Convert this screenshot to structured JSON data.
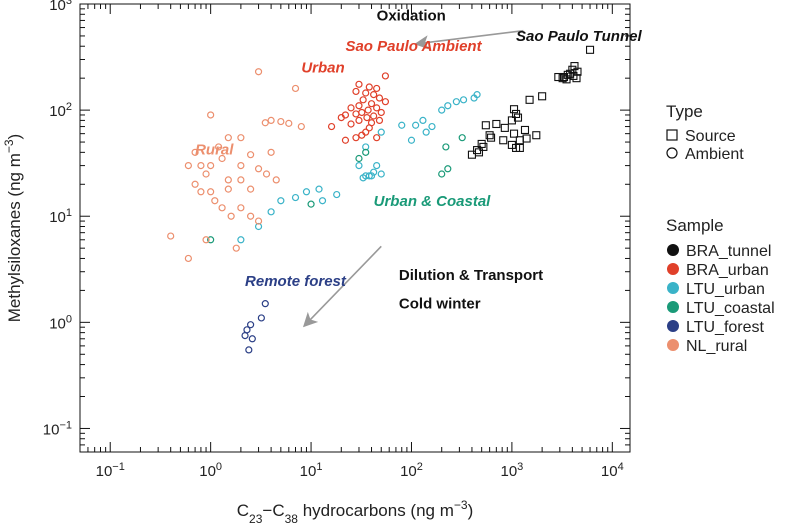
{
  "chart_data": {
    "type": "scatter",
    "x_scale": "log",
    "y_scale": "log",
    "xlim": [
      0.05,
      15000
    ],
    "ylim": [
      0.06,
      1000
    ],
    "xticks": [
      {
        "v": 0.1,
        "base": "10",
        "exp": "−1"
      },
      {
        "v": 1,
        "text": "10",
        "exp": "0"
      },
      {
        "v": 10,
        "text": "10",
        "exp": "1"
      },
      {
        "v": 100,
        "text": "10",
        "exp": "2"
      },
      {
        "v": 1000,
        "text": "10",
        "exp": "3"
      },
      {
        "v": 10000,
        "text": "10",
        "exp": "4"
      }
    ],
    "yticks": [
      {
        "v": 0.1,
        "text": "10",
        "exp": "−1"
      },
      {
        "v": 1,
        "text": "10",
        "exp": "0"
      },
      {
        "v": 10,
        "text": "10",
        "exp": "1"
      },
      {
        "v": 100,
        "text": "10",
        "exp": "2"
      },
      {
        "v": 1000,
        "text": "10",
        "exp": "3"
      }
    ],
    "xlabel": {
      "pre": "C",
      "sub1": "23",
      "mid": "−C",
      "sub2": "38",
      "post": " hydrocarbons (ng m",
      "exp": "−3",
      "close": ")"
    },
    "ylabel": {
      "pre": "Methylsiloxanes (ng m",
      "exp": "−3",
      "close": ")"
    },
    "legend_type": {
      "title": "Type",
      "items": [
        {
          "label": "Source",
          "marker": "square"
        },
        {
          "label": "Ambient",
          "marker": "circle"
        }
      ]
    },
    "legend_sample": {
      "title": "Sample",
      "items": [
        {
          "label": "BRA_tunnel",
          "color": "#111111"
        },
        {
          "label": "BRA_urban",
          "color": "#e0402a"
        },
        {
          "label": "LTU_urban",
          "color": "#3ab3c8"
        },
        {
          "label": "LTU_coastal",
          "color": "#1a9a78"
        },
        {
          "label": "LTU_forest",
          "color": "#2b3f86"
        },
        {
          "label": "NL_rural",
          "color": "#ec8f6e"
        }
      ]
    },
    "annotations": [
      {
        "text": "Oxidation",
        "x": 45,
        "y": 700,
        "color": "#111111",
        "style": "plain"
      },
      {
        "text": "Sao Paulo Tunnel",
        "x": 1100,
        "y": 450,
        "color": "#111111",
        "style": "italic"
      },
      {
        "text": "Sao Paulo Ambient",
        "x": 22,
        "y": 360,
        "color": "#e0402a",
        "style": "italic"
      },
      {
        "text": "Urban",
        "x": 8,
        "y": 225,
        "color": "#e0402a",
        "style": "italic"
      },
      {
        "text": "Rural",
        "x": 0.7,
        "y": 38,
        "color": "#ec8f6e",
        "style": "italic"
      },
      {
        "text": "Urban & Coastal",
        "x": 42,
        "y": 12.5,
        "color": "#1a9a78",
        "style": "italic"
      },
      {
        "text": "Remote forest",
        "x": 2.2,
        "y": 2.2,
        "color": "#2b3f86",
        "style": "italic"
      },
      {
        "text": "Dilution & Transport",
        "x": 75,
        "y": 2.5,
        "color": "#111111",
        "style": "plain"
      },
      {
        "text": "Cold winter",
        "x": 75,
        "y": 1.35,
        "color": "#111111",
        "style": "plain"
      }
    ],
    "arrows": [
      {
        "from": [
          1300,
          560
        ],
        "to": [
          110,
          420
        ]
      },
      {
        "from": [
          50,
          5.2
        ],
        "to": [
          8.5,
          0.92
        ]
      }
    ],
    "series": [
      {
        "name": "BRA_tunnel",
        "marker": "square",
        "color": "#111111",
        "points": [
          [
            6000,
            370
          ],
          [
            4200,
            260
          ],
          [
            4000,
            240
          ],
          [
            4500,
            230
          ],
          [
            3800,
            220
          ],
          [
            3600,
            215
          ],
          [
            4100,
            210
          ],
          [
            3300,
            205
          ],
          [
            3200,
            200
          ],
          [
            2900,
            205
          ],
          [
            4400,
            200
          ],
          [
            3500,
            195
          ],
          [
            2000,
            135
          ],
          [
            1500,
            125
          ],
          [
            1050,
            102
          ],
          [
            1100,
            92
          ],
          [
            1150,
            85
          ],
          [
            1000,
            80
          ],
          [
            700,
            74
          ],
          [
            550,
            72
          ],
          [
            850,
            68
          ],
          [
            1350,
            65
          ],
          [
            1050,
            60
          ],
          [
            1750,
            58
          ],
          [
            600,
            58
          ],
          [
            620,
            55
          ],
          [
            1400,
            54
          ],
          [
            1200,
            52
          ],
          [
            820,
            52
          ],
          [
            500,
            48
          ],
          [
            1000,
            47
          ],
          [
            520,
            45
          ],
          [
            1100,
            44
          ],
          [
            1200,
            44
          ],
          [
            450,
            42
          ],
          [
            470,
            40
          ],
          [
            400,
            38
          ]
        ]
      },
      {
        "name": "BRA_urban",
        "marker": "circle",
        "color": "#e0402a",
        "points": [
          [
            55,
            210
          ],
          [
            30,
            175
          ],
          [
            38,
            165
          ],
          [
            45,
            160
          ],
          [
            28,
            150
          ],
          [
            35,
            145
          ],
          [
            42,
            140
          ],
          [
            48,
            130
          ],
          [
            33,
            125
          ],
          [
            55,
            120
          ],
          [
            40,
            115
          ],
          [
            30,
            110
          ],
          [
            45,
            105
          ],
          [
            25,
            105
          ],
          [
            37,
            100
          ],
          [
            32,
            95
          ],
          [
            50,
            95
          ],
          [
            28,
            92
          ],
          [
            22,
            90
          ],
          [
            42,
            88
          ],
          [
            36,
            85
          ],
          [
            20,
            85
          ],
          [
            48,
            80
          ],
          [
            30,
            80
          ],
          [
            40,
            76
          ],
          [
            25,
            74
          ],
          [
            16,
            70
          ],
          [
            38,
            68
          ],
          [
            35,
            62
          ],
          [
            32,
            58
          ],
          [
            28,
            55
          ],
          [
            45,
            55
          ],
          [
            22,
            52
          ]
        ]
      },
      {
        "name": "LTU_urban",
        "marker": "circle",
        "color": "#3ab3c8",
        "points": [
          [
            450,
            140
          ],
          [
            420,
            130
          ],
          [
            330,
            125
          ],
          [
            280,
            120
          ],
          [
            230,
            110
          ],
          [
            200,
            100
          ],
          [
            130,
            80
          ],
          [
            110,
            72
          ],
          [
            80,
            72
          ],
          [
            160,
            70
          ],
          [
            140,
            62
          ],
          [
            50,
            62
          ],
          [
            100,
            52
          ],
          [
            35,
            45
          ],
          [
            45,
            30
          ],
          [
            50,
            25
          ],
          [
            42,
            26
          ],
          [
            40,
            24
          ],
          [
            38,
            24
          ],
          [
            35,
            24
          ],
          [
            33,
            23
          ],
          [
            30,
            30
          ],
          [
            12,
            18
          ],
          [
            18,
            16
          ],
          [
            13,
            14
          ],
          [
            9,
            17
          ],
          [
            7,
            15
          ],
          [
            5,
            14
          ],
          [
            4,
            11
          ],
          [
            3,
            8
          ],
          [
            2,
            6
          ]
        ]
      },
      {
        "name": "LTU_coastal",
        "marker": "circle",
        "color": "#1a9a78",
        "points": [
          [
            320,
            55
          ],
          [
            220,
            45
          ],
          [
            30,
            35
          ],
          [
            35,
            40
          ],
          [
            230,
            28
          ],
          [
            200,
            25
          ],
          [
            10,
            13
          ],
          [
            1,
            6
          ]
        ]
      },
      {
        "name": "LTU_forest",
        "marker": "circle",
        "color": "#2b3f86",
        "points": [
          [
            3.5,
            1.5
          ],
          [
            3.2,
            1.1
          ],
          [
            2.5,
            0.95
          ],
          [
            2.3,
            0.85
          ],
          [
            2.2,
            0.75
          ],
          [
            2.6,
            0.7
          ],
          [
            2.4,
            0.55
          ]
        ]
      },
      {
        "name": "NL_rural",
        "marker": "circle",
        "color": "#ec8f6e",
        "points": [
          [
            3,
            230
          ],
          [
            7,
            160
          ],
          [
            1,
            90
          ],
          [
            4,
            80
          ],
          [
            5,
            78
          ],
          [
            6,
            75
          ],
          [
            3.5,
            76
          ],
          [
            8,
            70
          ],
          [
            1.5,
            55
          ],
          [
            1.2,
            45
          ],
          [
            2,
            55
          ],
          [
            4,
            40
          ],
          [
            0.7,
            40
          ],
          [
            2.5,
            38
          ],
          [
            1.3,
            35
          ],
          [
            0.8,
            30
          ],
          [
            0.6,
            30
          ],
          [
            1,
            30
          ],
          [
            2,
            30
          ],
          [
            0.9,
            25
          ],
          [
            3,
            28
          ],
          [
            3.6,
            25
          ],
          [
            4.5,
            22
          ],
          [
            2,
            22
          ],
          [
            1.5,
            22
          ],
          [
            0.7,
            20
          ],
          [
            1.5,
            18
          ],
          [
            2.5,
            18
          ],
          [
            1,
            17
          ],
          [
            0.8,
            17
          ],
          [
            1.1,
            14
          ],
          [
            1.3,
            12
          ],
          [
            1.6,
            10
          ],
          [
            2,
            12
          ],
          [
            2.5,
            10
          ],
          [
            3,
            9
          ],
          [
            0.9,
            6
          ],
          [
            0.4,
            6.5
          ],
          [
            0.6,
            4
          ],
          [
            1.8,
            5
          ]
        ]
      }
    ]
  }
}
